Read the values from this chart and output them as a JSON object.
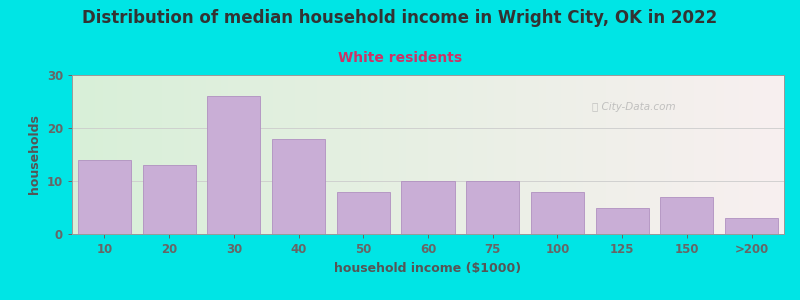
{
  "title": "Distribution of median household income in Wright City, OK in 2022",
  "subtitle": "White residents",
  "xlabel": "household income ($1000)",
  "ylabel": "households",
  "categories": [
    "10",
    "20",
    "30",
    "40",
    "50",
    "60",
    "75",
    "100",
    "125",
    "150",
    ">200"
  ],
  "values": [
    14,
    13,
    26,
    18,
    8,
    10,
    10,
    8,
    5,
    7,
    3
  ],
  "bar_color": "#c9aed6",
  "bar_edge_color": "#b090c0",
  "title_color": "#333333",
  "subtitle_color": "#cc3366",
  "axis_label_color": "#555555",
  "tick_color": "#666666",
  "background_outer": "#00e5e5",
  "background_inner_left": "#d8efd8",
  "background_inner_right": "#f8f0f0",
  "ylim": [
    0,
    30
  ],
  "yticks": [
    0,
    10,
    20,
    30
  ],
  "title_fontsize": 12,
  "subtitle_fontsize": 10,
  "label_fontsize": 9,
  "tick_fontsize": 8.5
}
